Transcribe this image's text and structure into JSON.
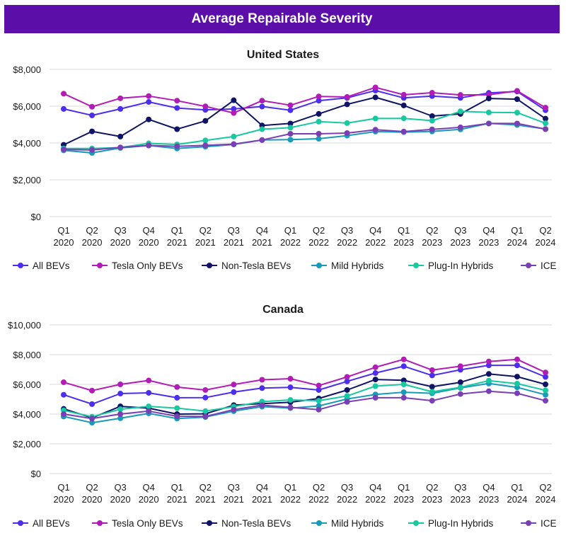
{
  "page_title": "Average Repairable Severity",
  "colors": {
    "banner": "#5b0fa8",
    "grid": "#d9d9d9",
    "All BEVs": "#4b2ef0",
    "Tesla Only BEVs": "#b21bb6",
    "Non-Tesla BEVs": "#0f1466",
    "Mild Hybrids": "#179bb8",
    "Plug-In Hybrids": "#16c9a0",
    "ICE": "#7a3fb5"
  },
  "chart_data": [
    {
      "type": "line",
      "title": "United States",
      "categories": [
        [
          "Q1",
          "2020"
        ],
        [
          "Q2",
          "2020"
        ],
        [
          "Q3",
          "2020"
        ],
        [
          "Q4",
          "2020"
        ],
        [
          "Q1",
          "2021"
        ],
        [
          "Q2",
          "2021"
        ],
        [
          "Q3",
          "2021"
        ],
        [
          "Q4",
          "2021"
        ],
        [
          "Q1",
          "2022"
        ],
        [
          "Q2",
          "2022"
        ],
        [
          "Q3",
          "2022"
        ],
        [
          "Q4",
          "2022"
        ],
        [
          "Q1",
          "2023"
        ],
        [
          "Q2",
          "2023"
        ],
        [
          "Q3",
          "2023"
        ],
        [
          "Q4",
          "2023"
        ],
        [
          "Q1",
          "2024"
        ],
        [
          "Q2",
          "2024"
        ]
      ],
      "ylim": [
        0,
        8000
      ],
      "yticks": [
        0,
        2000,
        4000,
        6000,
        8000
      ],
      "ytick_labels": [
        "$0",
        "$2,000",
        "$4,000",
        "$6,000",
        "$8,000"
      ],
      "grid": true,
      "legend": "bottom",
      "series": [
        {
          "name": "All BEVs",
          "values": [
            5850,
            5500,
            5850,
            6230,
            5900,
            5800,
            5850,
            5980,
            5780,
            6300,
            6450,
            6850,
            6450,
            6550,
            6450,
            6720,
            6800,
            5780
          ]
        },
        {
          "name": "Tesla Only BEVs",
          "values": [
            6680,
            5970,
            6430,
            6550,
            6300,
            5990,
            5630,
            6300,
            6050,
            6530,
            6500,
            7020,
            6620,
            6730,
            6610,
            6620,
            6830,
            5920
          ]
        },
        {
          "name": "Non-Tesla BEVs",
          "values": [
            3900,
            4630,
            4350,
            5280,
            4750,
            5200,
            6320,
            4950,
            5060,
            5580,
            6100,
            6480,
            6040,
            5460,
            5580,
            6420,
            6380,
            5320
          ]
        },
        {
          "name": "Mild Hybrids",
          "values": [
            3600,
            3460,
            3730,
            3860,
            3700,
            3800,
            3920,
            4160,
            4180,
            4230,
            4400,
            4620,
            4590,
            4630,
            4740,
            5060,
            4980,
            4760
          ]
        },
        {
          "name": "Plug-In Hybrids",
          "values": [
            3700,
            3700,
            3750,
            3980,
            3920,
            4140,
            4350,
            4750,
            4830,
            5160,
            5080,
            5330,
            5340,
            5210,
            5720,
            5660,
            5650,
            5070
          ]
        },
        {
          "name": "ICE",
          "values": [
            3650,
            3620,
            3760,
            3870,
            3820,
            3870,
            3940,
            4160,
            4500,
            4500,
            4540,
            4720,
            4620,
            4740,
            4850,
            5060,
            5060,
            4750
          ]
        }
      ]
    },
    {
      "type": "line",
      "title": "Canada",
      "categories": [
        [
          "Q1",
          "2020"
        ],
        [
          "Q2",
          "2020"
        ],
        [
          "Q3",
          "2020"
        ],
        [
          "Q4",
          "2020"
        ],
        [
          "Q1",
          "2021"
        ],
        [
          "Q2",
          "2021"
        ],
        [
          "Q3",
          "2021"
        ],
        [
          "Q4",
          "2021"
        ],
        [
          "Q1",
          "2022"
        ],
        [
          "Q2",
          "2022"
        ],
        [
          "Q3",
          "2022"
        ],
        [
          "Q4",
          "2022"
        ],
        [
          "Q1",
          "2023"
        ],
        [
          "Q2",
          "2023"
        ],
        [
          "Q3",
          "2023"
        ],
        [
          "Q4",
          "2023"
        ],
        [
          "Q1",
          "2024"
        ],
        [
          "Q2",
          "2024"
        ]
      ],
      "ylim": [
        0,
        10000
      ],
      "yticks": [
        0,
        2000,
        4000,
        6000,
        8000,
        10000
      ],
      "ytick_labels": [
        "$0",
        "$2,000",
        "$4,000",
        "$6,000",
        "$8,000",
        "$10,000"
      ],
      "grid": true,
      "legend": "bottom",
      "series": [
        {
          "name": "All BEVs",
          "values": [
            5300,
            4670,
            5380,
            5430,
            5100,
            5110,
            5480,
            5750,
            5800,
            5620,
            6200,
            6760,
            7220,
            6600,
            6980,
            7280,
            7280,
            6500
          ]
        },
        {
          "name": "Tesla Only BEVs",
          "values": [
            6140,
            5580,
            6000,
            6260,
            5820,
            5620,
            5990,
            6310,
            6380,
            5920,
            6500,
            7150,
            7680,
            6960,
            7220,
            7540,
            7680,
            6800
          ]
        },
        {
          "name": "Non-Tesla BEVs",
          "values": [
            4350,
            3750,
            4520,
            4400,
            4000,
            4020,
            4600,
            4700,
            4800,
            5050,
            5620,
            6330,
            6270,
            5840,
            6140,
            6700,
            6520,
            6000
          ]
        },
        {
          "name": "Mild Hybrids",
          "values": [
            3840,
            3420,
            3720,
            4050,
            3700,
            3800,
            4200,
            4500,
            4400,
            4550,
            5020,
            5320,
            5470,
            5400,
            5760,
            6060,
            5800,
            5300
          ]
        },
        {
          "name": "Plug-In Hybrids",
          "values": [
            4250,
            3820,
            4330,
            4520,
            4400,
            4200,
            4500,
            4840,
            4950,
            4900,
            5220,
            5880,
            6000,
            5500,
            5800,
            6250,
            6050,
            5600
          ]
        },
        {
          "name": "ICE",
          "values": [
            4000,
            3700,
            4000,
            4200,
            3850,
            3840,
            4300,
            4600,
            4450,
            4300,
            4820,
            5100,
            5100,
            4900,
            5350,
            5540,
            5400,
            4900
          ]
        }
      ]
    }
  ]
}
